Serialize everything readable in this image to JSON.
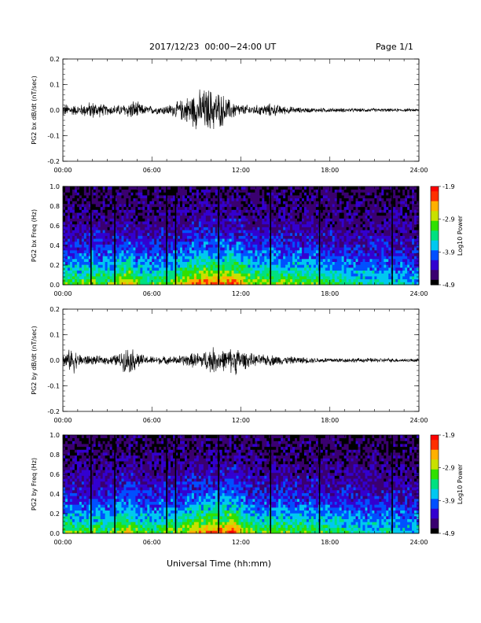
{
  "header": {
    "title": "2017/12/23  00:00−24:00 UT",
    "page": "Page 1/1"
  },
  "xlabel": "Universal Time (hh:mm)",
  "colors": {
    "colormap": [
      "#000000",
      "#3a0070",
      "#3300d0",
      "#0050ff",
      "#00c8f0",
      "#00e080",
      "#30e000",
      "#c8e000",
      "#ffb000",
      "#ff3000",
      "#ff0000"
    ],
    "trace": "#000000"
  },
  "chart_data": [
    {
      "type": "line",
      "id": "bx_time",
      "ylabel": "PG2 bx dB/dt (nT/sec)",
      "x_ticks": [
        "00:00",
        "06:00",
        "12:00",
        "18:00",
        "24:00"
      ],
      "y_ticks": [
        "0.2",
        "0.1",
        "0.0",
        "-0.1",
        "-0.2"
      ],
      "xlim": [
        0,
        24
      ],
      "ylim": [
        -0.2,
        0.2
      ],
      "envelope": {
        "hours": [
          0,
          1,
          2,
          3,
          4,
          4.8,
          5.5,
          6.5,
          7.5,
          8.2,
          9.0,
          9.8,
          10.5,
          11.2,
          12,
          13,
          14,
          15,
          16,
          17,
          18,
          19,
          20,
          21,
          22,
          23,
          24
        ],
        "amplitude": [
          0.03,
          0.022,
          0.04,
          0.022,
          0.025,
          0.045,
          0.02,
          0.018,
          0.03,
          0.055,
          0.085,
          0.1,
          0.085,
          0.05,
          0.025,
          0.022,
          0.03,
          0.018,
          0.012,
          0.01,
          0.01,
          0.009,
          0.008,
          0.008,
          0.007,
          0.007,
          0.006
        ]
      }
    },
    {
      "type": "heatmap",
      "id": "bx_freq",
      "ylabel": "PG2 bx Freq (Hz)",
      "x_ticks": [
        "00:00",
        "06:00",
        "12:00",
        "18:00",
        "24:00"
      ],
      "y_ticks": [
        "1.0",
        "0.8",
        "0.6",
        "0.4",
        "0.2",
        "0.0"
      ],
      "xlim": [
        0,
        24
      ],
      "ylim": [
        0,
        1.0
      ],
      "colorbar": {
        "label": "Log10 Power",
        "ticks": [
          "-1.9",
          "-2.9",
          "-3.9",
          "-4.9"
        ],
        "range": [
          -4.9,
          -1.9
        ]
      },
      "gap_hours": [
        1.9,
        3.5,
        7.0,
        7.6,
        10.5,
        14.0,
        17.3,
        22.2
      ],
      "activity": {
        "hours": [
          0,
          1,
          2,
          3,
          4,
          4.5,
          5,
          6,
          7,
          8,
          9,
          10,
          11,
          11.5,
          12,
          13,
          14,
          15,
          16,
          17,
          18,
          19,
          20,
          21,
          22,
          23,
          24
        ],
        "level": [
          0.55,
          0.5,
          0.6,
          0.5,
          0.65,
          0.75,
          0.55,
          0.5,
          0.55,
          0.65,
          0.8,
          0.85,
          0.8,
          0.9,
          0.75,
          0.6,
          0.6,
          0.58,
          0.56,
          0.55,
          0.5,
          0.45,
          0.4,
          0.4,
          0.38,
          0.36,
          0.35
        ]
      }
    },
    {
      "type": "line",
      "id": "by_time",
      "ylabel": "PG2 by dB/dt (nT/sec)",
      "x_ticks": [
        "00:00",
        "06:00",
        "12:00",
        "18:00",
        "24:00"
      ],
      "y_ticks": [
        "0.2",
        "0.1",
        "0.0",
        "-0.1",
        "-0.2"
      ],
      "xlim": [
        0,
        24
      ],
      "ylim": [
        -0.2,
        0.2
      ],
      "envelope": {
        "hours": [
          0,
          0.7,
          1.0,
          2,
          3,
          3.8,
          4.3,
          4.8,
          5.5,
          6.5,
          7.5,
          8.5,
          9.5,
          10.0,
          11.0,
          11.6,
          12.2,
          13,
          14,
          15,
          16,
          17,
          18,
          19,
          20,
          21,
          22,
          23,
          24
        ],
        "amplitude": [
          0.025,
          0.06,
          0.03,
          0.02,
          0.018,
          0.03,
          0.06,
          0.05,
          0.02,
          0.018,
          0.018,
          0.03,
          0.04,
          0.06,
          0.045,
          0.065,
          0.04,
          0.025,
          0.025,
          0.018,
          0.015,
          0.012,
          0.012,
          0.01,
          0.01,
          0.01,
          0.009,
          0.008,
          0.008
        ]
      }
    },
    {
      "type": "heatmap",
      "id": "by_freq",
      "ylabel": "PG2 by Freq (Hz)",
      "x_ticks": [
        "00:00",
        "06:00",
        "12:00",
        "18:00",
        "24:00"
      ],
      "y_ticks": [
        "1.0",
        "0.8",
        "0.6",
        "0.4",
        "0.2",
        "0.0"
      ],
      "xlim": [
        0,
        24
      ],
      "ylim": [
        0,
        1.0
      ],
      "colorbar": {
        "label": "Log10 Power",
        "ticks": [
          "-1.9",
          "-2.9",
          "-3.9",
          "-4.9"
        ],
        "range": [
          -4.9,
          -1.9
        ]
      },
      "gap_hours": [
        1.9,
        3.5,
        7.0,
        7.6,
        10.5,
        14.0,
        17.3,
        22.2
      ],
      "activity": {
        "hours": [
          0,
          1,
          2,
          3,
          4,
          4.5,
          5,
          6,
          7,
          8,
          9,
          10,
          11,
          11.5,
          12,
          13,
          14,
          15,
          16,
          17,
          18,
          19,
          20,
          21,
          22,
          23,
          24
        ],
        "level": [
          0.55,
          0.5,
          0.55,
          0.5,
          0.65,
          0.7,
          0.55,
          0.5,
          0.55,
          0.6,
          0.75,
          0.8,
          0.8,
          0.95,
          0.7,
          0.55,
          0.55,
          0.55,
          0.52,
          0.5,
          0.48,
          0.45,
          0.4,
          0.4,
          0.38,
          0.36,
          0.35
        ]
      }
    }
  ]
}
